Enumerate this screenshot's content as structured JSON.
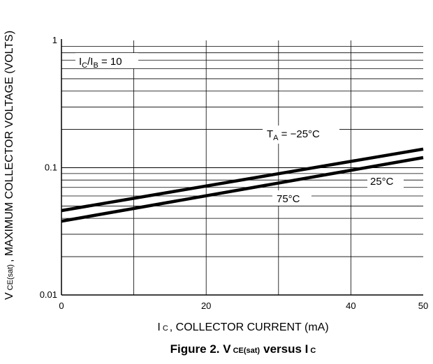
{
  "chart_data": {
    "type": "line",
    "x_scale": "linear",
    "y_scale": "log",
    "xlim": [
      0,
      50
    ],
    "ylim": [
      0.01,
      1
    ],
    "x_ticks": [
      "0",
      "20",
      "40",
      "50"
    ],
    "x_tick_values": [
      0,
      20,
      40,
      50
    ],
    "y_ticks": [
      "1",
      "0.1",
      "0.01"
    ],
    "y_tick_values": [
      1,
      0.1,
      0.01
    ],
    "grid": true,
    "xlabel": {
      "main": "I",
      "sub": "C",
      "rest": ", COLLECTOR CURRENT (mA)"
    },
    "ylabel": {
      "main": "V",
      "sub": "CE(sat)",
      "rest": ", MAXIMUM COLLECTOR VOLTAGE (VOLTS)"
    },
    "caption": {
      "prefix": "Figure 2. V",
      "sub1": "CE(sat)",
      "mid": "versus I",
      "sub2": "C"
    },
    "annotations": {
      "ratio": {
        "a": "I",
        "a_sub": "C",
        "slash": "/I",
        "b_sub": "B",
        "rest": " = 10"
      },
      "ta": {
        "a": "T",
        "a_sub": "A",
        "rest": " = −25°C"
      },
      "t25": "25°C",
      "t75": "75°C"
    },
    "series": [
      {
        "x": [
          0,
          50
        ],
        "y": [
          0.046,
          0.14
        ],
        "color": "#000000"
      },
      {
        "x": [
          0,
          50
        ],
        "y": [
          0.038,
          0.12
        ],
        "color": "#000000"
      }
    ]
  }
}
